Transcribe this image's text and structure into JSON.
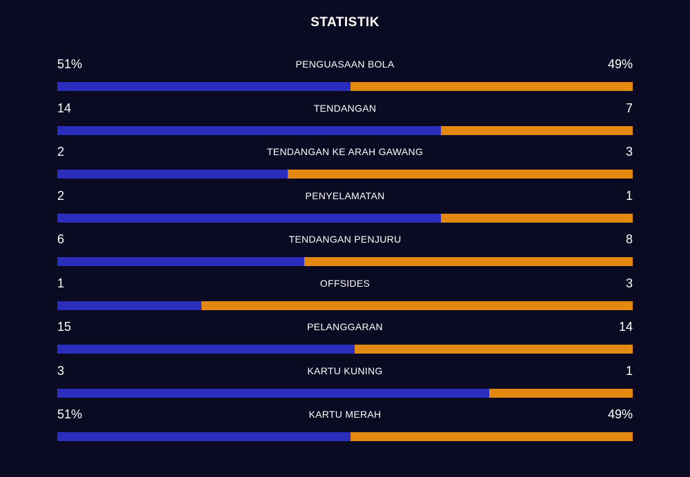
{
  "title": "STATISTIK",
  "colors": {
    "background": "#0a0a23",
    "home_bar": "#2b2dbd",
    "away_bar": "#e4890f",
    "text": "#ffffff"
  },
  "stats": [
    {
      "label": "PENGUASAAN BOLA",
      "home": "51%",
      "away": "49%",
      "home_share": 0.51
    },
    {
      "label": "TENDANGAN",
      "home": "14",
      "away": "7",
      "home_share": 0.667
    },
    {
      "label": "TENDANGAN KE ARAH GAWANG",
      "home": "2",
      "away": "3",
      "home_share": 0.4
    },
    {
      "label": "PENYELAMATAN",
      "home": "2",
      "away": "1",
      "home_share": 0.667
    },
    {
      "label": "TENDANGAN PENJURU",
      "home": "6",
      "away": "8",
      "home_share": 0.429
    },
    {
      "label": "OFFSIDES",
      "home": "1",
      "away": "3",
      "home_share": 0.25
    },
    {
      "label": "PELANGGARAN",
      "home": "15",
      "away": "14",
      "home_share": 0.517
    },
    {
      "label": "KARTU KUNING",
      "home": "3",
      "away": "1",
      "home_share": 0.75
    },
    {
      "label": "KARTU MERAH",
      "home": "51%",
      "away": "49%",
      "home_share": 0.51
    }
  ]
}
